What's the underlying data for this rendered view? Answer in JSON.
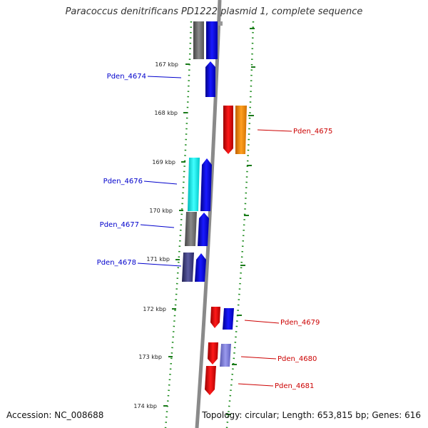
{
  "title": "Paracoccus denitrificans PD1222 plasmid 1, complete sequence",
  "accession_text": "Accession: NC_008688",
  "summary_text": "Topology: circular; Length: 653,815 bp; Genes: 616",
  "scale": {
    "kbp_labels": [
      {
        "kbp": 167,
        "label": "167 kbp"
      },
      {
        "kbp": 168,
        "label": "168 kbp"
      },
      {
        "kbp": 169,
        "label": "169 kbp"
      },
      {
        "kbp": 170,
        "label": "170 kbp"
      },
      {
        "kbp": 171,
        "label": "171 kbp"
      },
      {
        "kbp": 172,
        "label": "172 kbp"
      },
      {
        "kbp": 173,
        "label": "173 kbp"
      },
      {
        "kbp": 174,
        "label": "174 kbp"
      }
    ]
  },
  "genes": [
    {
      "name": "Pden_4674",
      "strand": "forward",
      "color": "#0000dd",
      "start": 167.15,
      "end": 167.75
    },
    {
      "name": "Pden_4675",
      "strand": "reverse",
      "color": "#dd0000",
      "start": 167.82,
      "end": 168.87
    },
    {
      "name": "Pden_4676",
      "strand": "forward",
      "color": "#0000dd",
      "start": 168.95,
      "end": 170.02
    },
    {
      "name": "Pden_4677",
      "strand": "forward",
      "color": "#0000dd",
      "start": 170.03,
      "end": 170.72
    },
    {
      "name": "Pden_4678",
      "strand": "forward",
      "color": "#0000dd",
      "start": 170.88,
      "end": 171.5
    },
    {
      "name": "Pden_4679",
      "strand": "reverse",
      "color": "#dd0000",
      "start": 171.95,
      "end": 172.42
    },
    {
      "name": "Pden_4680",
      "strand": "reverse",
      "color": "#dd0000",
      "start": 172.7,
      "end": 173.17
    },
    {
      "name": "Pden_4681",
      "strand": "reverse",
      "color": "#dd0000",
      "start": 173.2,
      "end": 173.8
    }
  ],
  "colors": {
    "forward_gene": "#0000dd",
    "reverse_gene": "#dd0000",
    "backbone": "#888888",
    "ticks": "#006600"
  }
}
